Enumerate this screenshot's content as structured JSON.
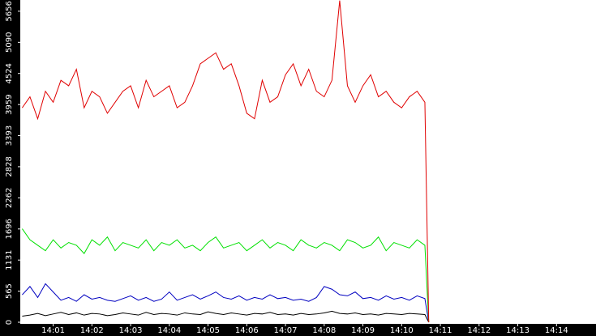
{
  "chart_data": {
    "type": "line",
    "x": [
      0.2,
      0.4,
      0.6,
      0.8,
      1.0,
      1.2,
      1.4,
      1.6,
      1.8,
      2.0,
      2.2,
      2.4,
      2.6,
      2.8,
      3.0,
      3.2,
      3.4,
      3.6,
      3.8,
      4.0,
      4.2,
      4.4,
      4.6,
      4.8,
      5.0,
      5.2,
      5.4,
      5.6,
      5.8,
      6.0,
      6.2,
      6.4,
      6.6,
      6.8,
      7.0,
      7.2,
      7.4,
      7.6,
      7.8,
      8.0,
      8.2,
      8.4,
      8.6,
      8.8,
      9.0,
      9.2,
      9.4,
      9.6,
      9.8,
      10.0,
      10.2,
      10.4,
      10.6,
      10.7
    ],
    "series": [
      {
        "color": "#e00000",
        "values": [
          3900,
          4100,
          3700,
          4200,
          4000,
          4400,
          4300,
          4600,
          3900,
          4200,
          4100,
          3800,
          4000,
          4200,
          4300,
          3900,
          4400,
          4100,
          4200,
          4300,
          3900,
          4000,
          4300,
          4700,
          4800,
          4900,
          4600,
          4700,
          4300,
          3800,
          3700,
          4400,
          4000,
          4100,
          4500,
          4700,
          4300,
          4600,
          4200,
          4100,
          4400,
          5850,
          4300,
          4000,
          4300,
          4500,
          4100,
          4200,
          4000,
          3900,
          4100,
          4200,
          4000,
          0
        ]
      },
      {
        "color": "#00e000",
        "values": [
          1700,
          1500,
          1400,
          1300,
          1500,
          1350,
          1450,
          1400,
          1250,
          1500,
          1400,
          1550,
          1300,
          1450,
          1400,
          1350,
          1500,
          1300,
          1450,
          1400,
          1500,
          1350,
          1400,
          1300,
          1450,
          1550,
          1350,
          1400,
          1450,
          1300,
          1400,
          1500,
          1350,
          1450,
          1400,
          1300,
          1500,
          1400,
          1350,
          1450,
          1400,
          1300,
          1500,
          1450,
          1350,
          1400,
          1550,
          1300,
          1450,
          1400,
          1350,
          1500,
          1400,
          0
        ]
      },
      {
        "color": "#0000c0",
        "values": [
          500,
          650,
          450,
          700,
          550,
          400,
          450,
          380,
          500,
          420,
          450,
          400,
          380,
          430,
          480,
          400,
          450,
          380,
          420,
          550,
          400,
          450,
          500,
          420,
          480,
          550,
          450,
          420,
          480,
          400,
          450,
          420,
          500,
          430,
          450,
          400,
          420,
          380,
          450,
          650,
          600,
          500,
          480,
          550,
          430,
          450,
          400,
          480,
          420,
          450,
          400,
          480,
          430,
          0
        ]
      },
      {
        "color": "#000000",
        "values": [
          110,
          130,
          160,
          120,
          150,
          180,
          140,
          170,
          130,
          160,
          150,
          120,
          140,
          170,
          150,
          130,
          180,
          140,
          160,
          150,
          130,
          170,
          150,
          140,
          190,
          160,
          140,
          170,
          150,
          130,
          160,
          150,
          180,
          140,
          150,
          130,
          160,
          140,
          150,
          170,
          200,
          160,
          150,
          170,
          140,
          150,
          130,
          160,
          150,
          140,
          160,
          150,
          140,
          0
        ]
      }
    ],
    "xlim": [
      0.15,
      15.02
    ],
    "xticks": [
      {
        "value": 1,
        "label": "14:01"
      },
      {
        "value": 2,
        "label": "14:02"
      },
      {
        "value": 3,
        "label": "14:03"
      },
      {
        "value": 4,
        "label": "14:04"
      },
      {
        "value": 5,
        "label": "14:05"
      },
      {
        "value": 6,
        "label": "14:06"
      },
      {
        "value": 7,
        "label": "14:07"
      },
      {
        "value": 8,
        "label": "14:08"
      },
      {
        "value": 9,
        "label": "14:09"
      },
      {
        "value": 10,
        "label": "14:10"
      },
      {
        "value": 11,
        "label": "14:11"
      },
      {
        "value": 12,
        "label": "14:12"
      },
      {
        "value": 13,
        "label": "14:13"
      },
      {
        "value": 14,
        "label": "14:14"
      }
    ],
    "ylim": [
      0,
      5860
    ],
    "yticks": [
      0,
      565,
      1131,
      1696,
      2262,
      2828,
      3393,
      3959,
      4524,
      5090,
      5656
    ]
  }
}
